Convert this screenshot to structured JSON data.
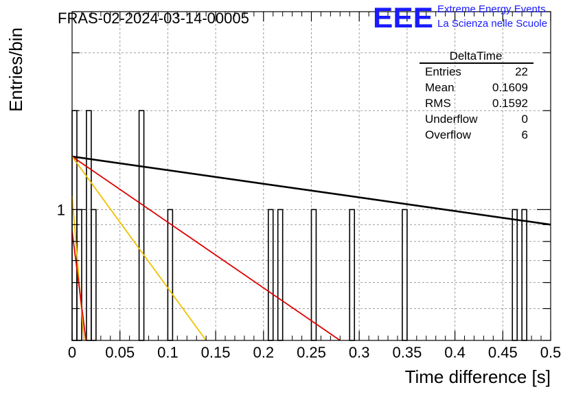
{
  "chart_data": {
    "type": "bar",
    "title": "FRAS-02-2024-03-14-00005",
    "xlabel": "Time difference [s]",
    "ylabel": "Entries/bin",
    "xlim": [
      0,
      0.5
    ],
    "ylim_log": [
      0.4,
      4
    ],
    "y_scale": "log",
    "grid": true,
    "x_ticks": [
      "0",
      "0.05",
      "0.1",
      "0.15",
      "0.2",
      "0.25",
      "0.3",
      "0.35",
      "0.4",
      "0.45",
      "0.5"
    ],
    "x_tick_values": [
      0,
      0.05,
      0.1,
      0.15,
      0.2,
      0.25,
      0.3,
      0.35,
      0.4,
      0.45,
      0.5
    ],
    "y_tick_labels": [
      {
        "value": 1,
        "label": "1"
      }
    ],
    "bin_width": 0.005,
    "histogram_bins": [
      {
        "x0": 0.0,
        "x1": 0.005,
        "count": 2
      },
      {
        "x0": 0.005,
        "x1": 0.01,
        "count": 1
      },
      {
        "x0": 0.015,
        "x1": 0.02,
        "count": 2
      },
      {
        "x0": 0.02,
        "x1": 0.025,
        "count": 1
      },
      {
        "x0": 0.07,
        "x1": 0.075,
        "count": 2
      },
      {
        "x0": 0.1,
        "x1": 0.105,
        "count": 1
      },
      {
        "x0": 0.205,
        "x1": 0.21,
        "count": 1
      },
      {
        "x0": 0.215,
        "x1": 0.22,
        "count": 1
      },
      {
        "x0": 0.25,
        "x1": 0.255,
        "count": 1
      },
      {
        "x0": 0.29,
        "x1": 0.295,
        "count": 1
      },
      {
        "x0": 0.345,
        "x1": 0.35,
        "count": 1
      },
      {
        "x0": 0.46,
        "x1": 0.465,
        "count": 1
      },
      {
        "x0": 0.47,
        "x1": 0.475,
        "count": 1
      }
    ],
    "fit_lines": [
      {
        "color": "#000000",
        "points": [
          [
            0.0,
            1.45
          ],
          [
            0.5,
            0.9
          ]
        ]
      },
      {
        "color": "#dd0000",
        "points": [
          [
            0.0,
            1.45
          ],
          [
            0.28,
            0.4
          ]
        ]
      },
      {
        "color": "#f0c000",
        "points": [
          [
            0.0,
            1.45
          ],
          [
            0.14,
            0.4
          ]
        ]
      },
      {
        "color": "#f0c000",
        "points": [
          [
            0.0,
            1.1
          ],
          [
            0.0125,
            0.4
          ]
        ]
      },
      {
        "color": "#dd0000",
        "points": [
          [
            0.0,
            0.86
          ],
          [
            0.0145,
            0.4
          ]
        ]
      }
    ],
    "stats_box": {
      "title": "DeltaTime",
      "rows": [
        {
          "label": "Entries",
          "value": "22"
        },
        {
          "label": "Mean",
          "value": "0.1609"
        },
        {
          "label": "RMS",
          "value": "0.1592"
        },
        {
          "label": "Underflow",
          "value": "0"
        },
        {
          "label": "Overflow",
          "value": "6"
        }
      ]
    },
    "logo": {
      "mark": "EEE",
      "line1": "Extreme Energy Events",
      "line2": "La Scienza nelle Scuole",
      "color": "#1a1aff"
    }
  }
}
